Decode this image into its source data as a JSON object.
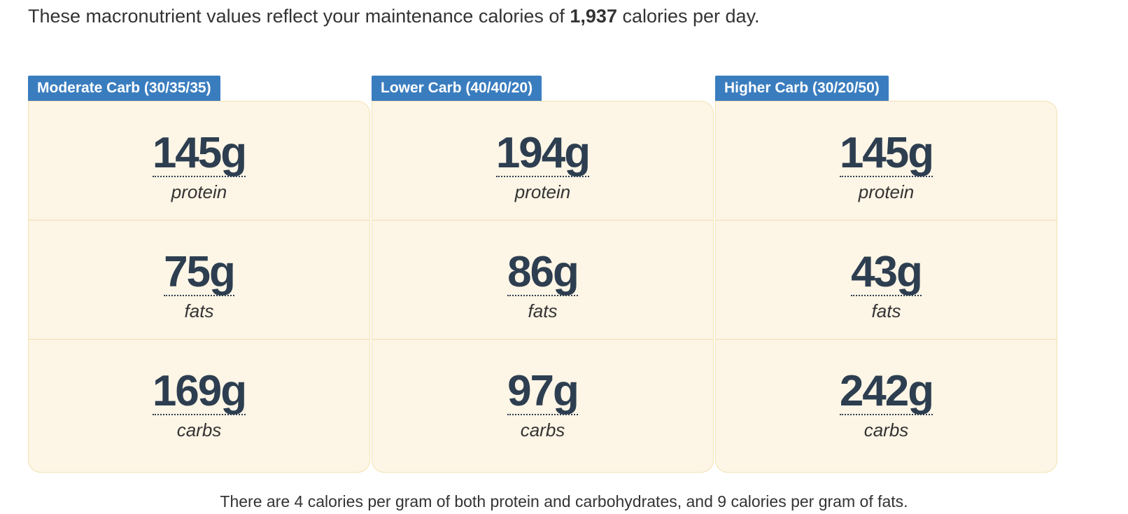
{
  "intro": {
    "prefix": "These macronutrient values reflect your maintenance calories of ",
    "calories": "1,937",
    "suffix": " calories per day."
  },
  "plans": [
    {
      "title": "Moderate Carb (30/35/35)",
      "protein": {
        "amount": "145g",
        "label": "protein"
      },
      "fats": {
        "amount": "75g",
        "label": "fats"
      },
      "carbs": {
        "amount": "169g",
        "label": "carbs"
      }
    },
    {
      "title": "Lower Carb (40/40/20)",
      "protein": {
        "amount": "194g",
        "label": "protein"
      },
      "fats": {
        "amount": "86g",
        "label": "fats"
      },
      "carbs": {
        "amount": "97g",
        "label": "carbs"
      }
    },
    {
      "title": "Higher Carb (30/20/50)",
      "protein": {
        "amount": "145g",
        "label": "protein"
      },
      "fats": {
        "amount": "43g",
        "label": "fats"
      },
      "carbs": {
        "amount": "242g",
        "label": "carbs"
      }
    }
  ],
  "footnote": "There are 4 calories per gram of both protein and carbohydrates, and 9 calories per gram of fats.",
  "colors": {
    "tab": "#3a7dbf",
    "box_bg": "#fdf5e6",
    "value_text": "#2d3e50"
  }
}
